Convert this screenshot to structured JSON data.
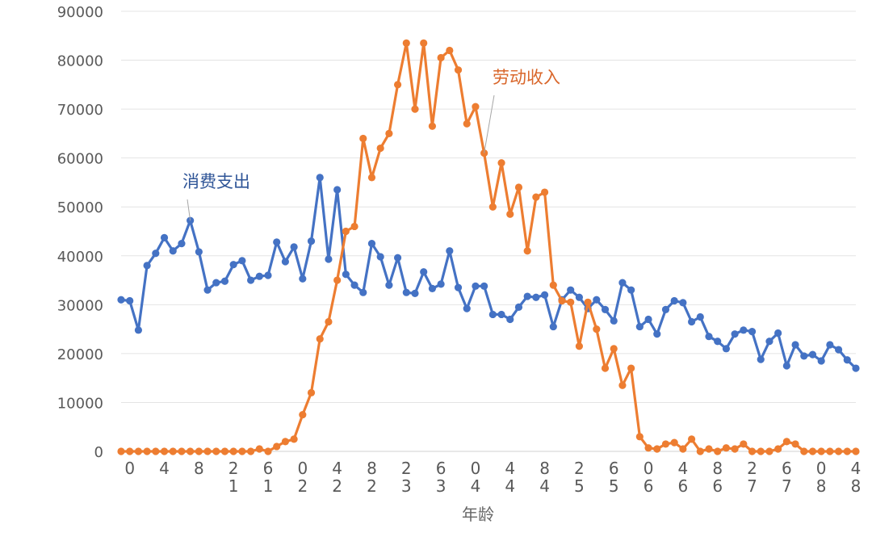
{
  "chart_data": {
    "type": "line",
    "title": "",
    "xlabel": "年龄",
    "ylabel": "",
    "ylim": [
      0,
      90000
    ],
    "yticks": [
      0,
      10000,
      20000,
      30000,
      40000,
      50000,
      60000,
      70000,
      80000,
      90000
    ],
    "ytick_labels": [
      "0",
      "10000",
      "20000",
      "30000",
      "40000",
      "50000",
      "60000",
      "70000",
      "80000",
      "90000"
    ],
    "grid": "horizontal",
    "legend": "none (series labels annotated inside the plot)",
    "x": [
      -1,
      0,
      1,
      2,
      3,
      4,
      5,
      6,
      7,
      8,
      9,
      10,
      11,
      12,
      13,
      14,
      15,
      16,
      17,
      18,
      19,
      20,
      21,
      22,
      23,
      24,
      25,
      26,
      27,
      28,
      29,
      30,
      31,
      32,
      33,
      34,
      35,
      36,
      37,
      38,
      39,
      40,
      41,
      42,
      43,
      44,
      45,
      46,
      47,
      48,
      49,
      50,
      51,
      52,
      53,
      54,
      55,
      56,
      57,
      58,
      59,
      60,
      61,
      62,
      63,
      64,
      65,
      66,
      67,
      68,
      69,
      70,
      71,
      72,
      73,
      74,
      75,
      76,
      77,
      78,
      79,
      80,
      81,
      82,
      83,
      84
    ],
    "xticks": [
      0,
      4,
      8,
      12,
      16,
      20,
      24,
      28,
      32,
      36,
      40,
      44,
      48,
      52,
      56,
      60,
      64,
      68,
      72,
      76,
      80,
      84
    ],
    "xtick_labels": [
      "0",
      "4",
      "8",
      "12",
      "16",
      "20",
      "24",
      "28",
      "32",
      "36",
      "40",
      "44",
      "48",
      "52",
      "56",
      "60",
      "64",
      "68",
      "72",
      "76",
      "80",
      "84"
    ],
    "series": [
      {
        "name": "消费支出",
        "color": "#4472c4",
        "values": [
          31000,
          30800,
          24800,
          38000,
          40500,
          43700,
          41000,
          42500,
          47200,
          40800,
          33000,
          34500,
          34800,
          38200,
          39000,
          35000,
          35800,
          36000,
          42800,
          38800,
          41800,
          35300,
          43000,
          56000,
          39300,
          53500,
          36200,
          34000,
          32500,
          42500,
          39800,
          34000,
          39600,
          32500,
          32300,
          36700,
          33300,
          34200,
          41000,
          33500,
          29200,
          33800,
          33800,
          28000,
          28000,
          27000,
          29500,
          31700,
          31500,
          32000,
          25500,
          31000,
          33000,
          31500,
          29200,
          31000,
          29000,
          26700,
          34500,
          33000,
          25500,
          27000,
          24000,
          29000,
          30800,
          30400,
          26500,
          27500,
          23500,
          22500,
          21000,
          24000,
          24800,
          24500,
          18800,
          22500,
          24200,
          17500,
          21800,
          19500,
          19800,
          18500,
          21800,
          20800,
          18700,
          17000
        ]
      },
      {
        "name": "劳动收入",
        "color": "#ed7d31",
        "values": [
          0,
          0,
          0,
          0,
          0,
          0,
          0,
          0,
          0,
          0,
          0,
          0,
          0,
          0,
          0,
          0,
          500,
          0,
          1000,
          2000,
          2500,
          7500,
          12000,
          23000,
          26500,
          35000,
          45000,
          46000,
          64000,
          56000,
          62000,
          65000,
          75000,
          83500,
          70000,
          83500,
          66500,
          80500,
          82000,
          78000,
          67000,
          70500,
          61000,
          50000,
          59000,
          48500,
          54000,
          41000,
          52000,
          53000,
          34000,
          30800,
          30500,
          21500,
          30500,
          25000,
          17000,
          21000,
          13500,
          17000,
          3000,
          700,
          500,
          1500,
          1800,
          500,
          2500,
          0,
          500,
          0,
          700,
          500,
          1500,
          0,
          0,
          0,
          500,
          2000,
          1500,
          0,
          0,
          0,
          0,
          0,
          0,
          0
        ]
      }
    ],
    "annotations": [
      {
        "text": "消费支出",
        "series": "消费支出",
        "x": 7
      },
      {
        "text": "劳动收入",
        "series": "劳动收入",
        "x": 41
      }
    ]
  }
}
